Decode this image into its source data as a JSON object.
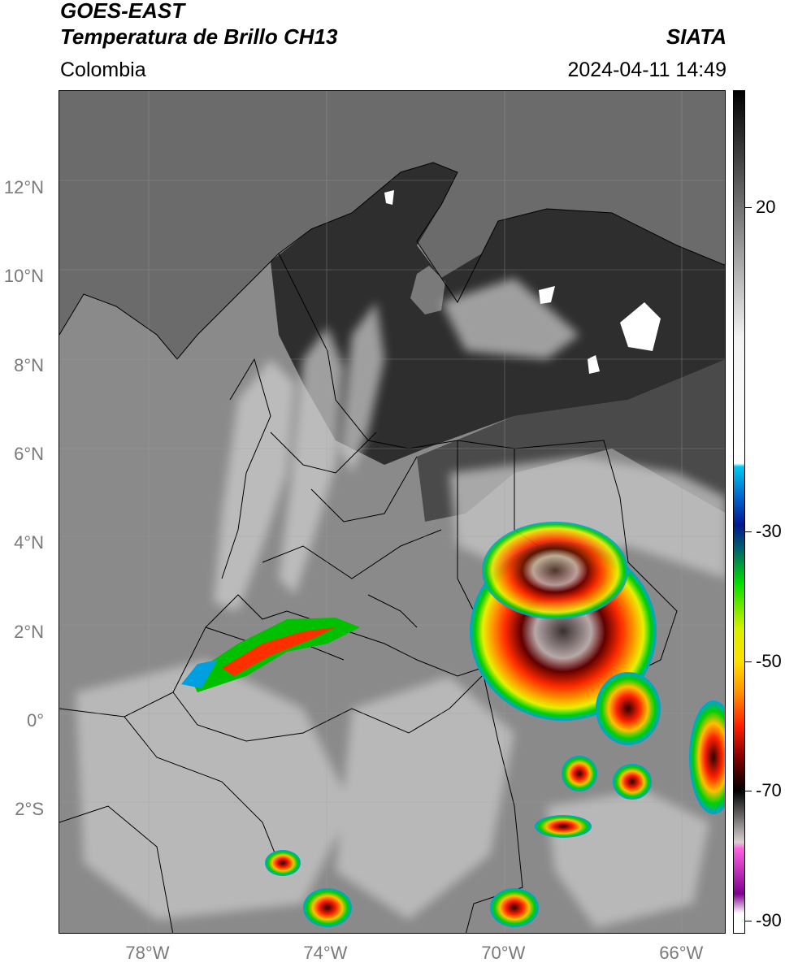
{
  "header": {
    "satellite": "GOES-EAST",
    "product": "Temperatura de Brillo CH13",
    "region": "Colombia",
    "organization": "SIATA",
    "datetime": "2024-04-11 14:49"
  },
  "map": {
    "lat_range": [
      -4.8,
      14.2
    ],
    "lon_range": [
      -80.0,
      -65.0
    ],
    "lat_labels": [
      {
        "text": "12°N",
        "value": 12
      },
      {
        "text": "10°N",
        "value": 10
      },
      {
        "text": "8°N",
        "value": 8
      },
      {
        "text": "6°N",
        "value": 6
      },
      {
        "text": "4°N",
        "value": 4
      },
      {
        "text": "2°N",
        "value": 2
      },
      {
        "text": "0°",
        "value": 0
      },
      {
        "text": "2°S",
        "value": -2
      }
    ],
    "lon_labels": [
      {
        "text": "78°W",
        "value": -78
      },
      {
        "text": "74°W",
        "value": -74
      },
      {
        "text": "70°W",
        "value": -70
      },
      {
        "text": "66°W",
        "value": -66
      }
    ],
    "grid": true
  },
  "colorbar": {
    "units_range": [
      -92,
      38
    ],
    "ticks": [
      {
        "text": "20",
        "value": 20
      },
      {
        "text": "-30",
        "value": -30
      },
      {
        "text": "-50",
        "value": -50
      },
      {
        "text": "-70",
        "value": -70
      },
      {
        "text": "-90",
        "value": -90
      }
    ],
    "stops": [
      {
        "value": 38,
        "color": "#000000"
      },
      {
        "value": 0,
        "color": "#f2f2f2"
      },
      {
        "value": -19.5,
        "color": "#ffffff"
      },
      {
        "value": -20,
        "color": "#00c8f0"
      },
      {
        "value": -25,
        "color": "#0060c8"
      },
      {
        "value": -29,
        "color": "#001890"
      },
      {
        "value": -33,
        "color": "#006868"
      },
      {
        "value": -38,
        "color": "#00e000"
      },
      {
        "value": -45,
        "color": "#d8f000"
      },
      {
        "value": -50,
        "color": "#ffe000"
      },
      {
        "value": -55,
        "color": "#ff9000"
      },
      {
        "value": -60,
        "color": "#ff2000"
      },
      {
        "value": -65,
        "color": "#800000"
      },
      {
        "value": -70,
        "color": "#000000"
      },
      {
        "value": -78,
        "color": "#d8d0d0"
      },
      {
        "value": -79,
        "color": "#ff60e0"
      },
      {
        "value": -86,
        "color": "#800090"
      },
      {
        "value": -89,
        "color": "#ffffff"
      }
    ]
  },
  "colors": {
    "ocean": "#6b6b6b",
    "land": "#8a8a8a",
    "warm_land": "#2e2e2e",
    "cold_cloud": "#d8d8d8"
  }
}
